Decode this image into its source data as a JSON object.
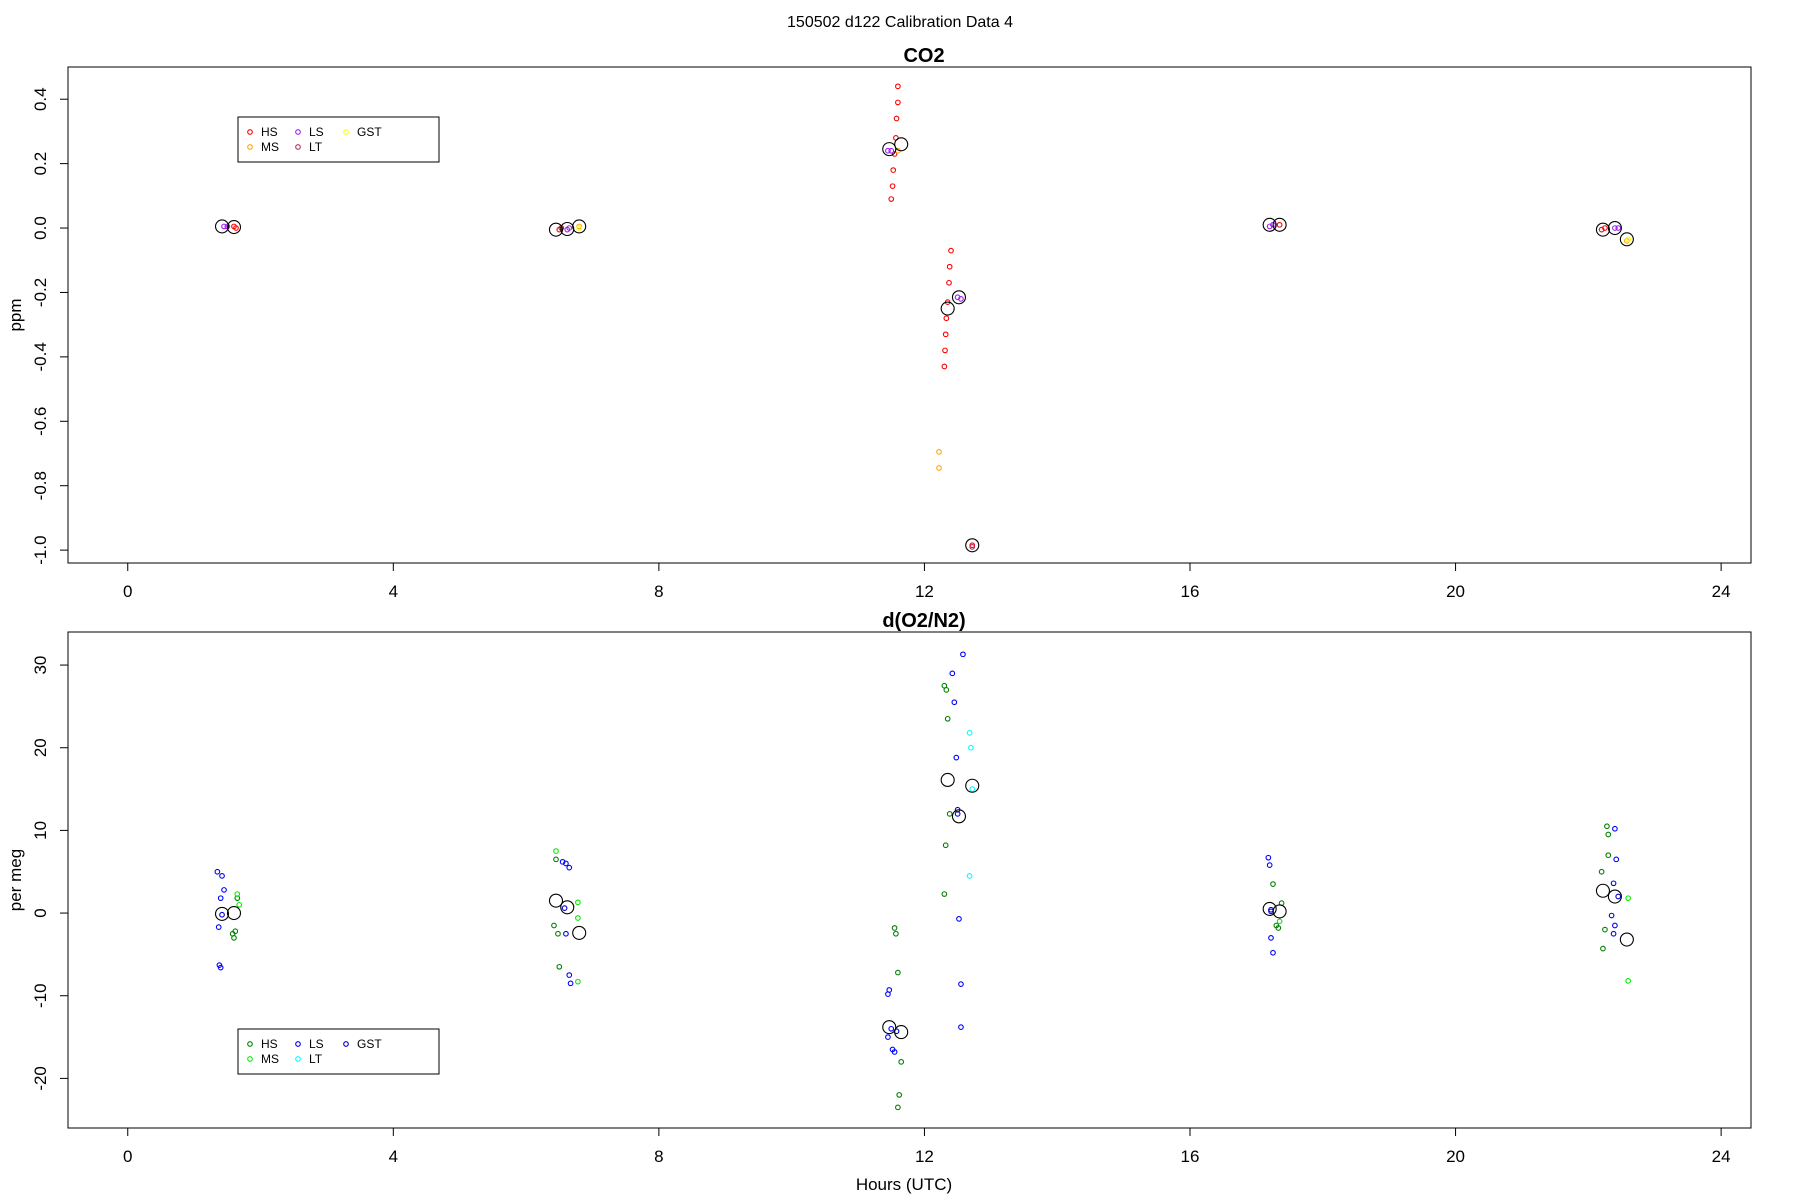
{
  "figure": {
    "suptitle": "150502   d122   Calibration Data 4"
  },
  "colors": {
    "co2": {
      "HS": "#ff0000",
      "MS": "#ffa500",
      "LS": "#a020f0",
      "LT": "#b03060",
      "GST": "#ffff00"
    },
    "o2": {
      "HS": "#008000",
      "MS": "#00ee00",
      "LS": "#0000ff",
      "LT": "#00ffff",
      "GST": "#0000cd"
    }
  },
  "chart_data": [
    {
      "type": "scatter",
      "title": "CO2",
      "xlabel": "",
      "ylabel": "ppm",
      "xlim": [
        -0.9,
        24.45
      ],
      "ylim": [
        -1.04,
        0.5
      ],
      "xticks": [
        "0",
        "4",
        "8",
        "12",
        "16",
        "20",
        "24"
      ],
      "yticks": [
        "0.4",
        "0.2",
        "0.0",
        "-0.2",
        "-0.4",
        "-0.6",
        "-0.8",
        "-1.0"
      ],
      "legend": {
        "position": "top-left",
        "entries": [
          "HS",
          "MS",
          "LS",
          "LT",
          "GST"
        ]
      },
      "series": [
        {
          "name": "HS",
          "points": [
            [
              1.6,
              0.005
            ],
            [
              1.63,
              0.0
            ],
            [
              6.5,
              -0.005
            ],
            [
              6.53,
              0.0
            ],
            [
              11.6,
              0.44
            ],
            [
              11.6,
              0.39
            ],
            [
              11.58,
              0.34
            ],
            [
              11.57,
              0.28
            ],
            [
              11.55,
              0.23
            ],
            [
              11.53,
              0.18
            ],
            [
              11.52,
              0.13
            ],
            [
              11.5,
              0.09
            ],
            [
              12.4,
              -0.07
            ],
            [
              12.38,
              -0.12
            ],
            [
              12.37,
              -0.17
            ],
            [
              12.35,
              -0.23
            ],
            [
              12.33,
              -0.28
            ],
            [
              12.32,
              -0.33
            ],
            [
              12.31,
              -0.38
            ],
            [
              12.3,
              -0.43
            ],
            [
              17.35,
              0.01
            ],
            [
              22.2,
              -0.005
            ],
            [
              22.25,
              0.0
            ],
            [
              12.72,
              -0.985
            ]
          ]
        },
        {
          "name": "MS",
          "points": [
            [
              6.8,
              0.005
            ],
            [
              11.6,
              0.24
            ],
            [
              12.22,
              -0.695
            ],
            [
              12.22,
              -0.745
            ],
            [
              22.58,
              -0.04
            ]
          ]
        },
        {
          "name": "LS",
          "points": [
            [
              1.45,
              0.005
            ],
            [
              1.5,
              0.005
            ],
            [
              6.62,
              -0.005
            ],
            [
              6.65,
              0.0
            ],
            [
              11.45,
              0.24
            ],
            [
              11.5,
              0.24
            ],
            [
              12.5,
              -0.215
            ],
            [
              12.55,
              -0.22
            ],
            [
              17.2,
              0.005
            ],
            [
              17.25,
              0.01
            ],
            [
              22.4,
              0.0
            ],
            [
              22.45,
              0.0
            ]
          ]
        },
        {
          "name": "LT",
          "points": [
            [
              12.72,
              -0.99
            ]
          ]
        },
        {
          "name": "GST",
          "points": [
            [
              6.8,
              0.0
            ],
            [
              22.6,
              -0.035
            ]
          ]
        }
      ],
      "means": [
        [
          1.42,
          0.005
        ],
        [
          1.6,
          0.003
        ],
        [
          6.45,
          -0.005
        ],
        [
          6.62,
          -0.003
        ],
        [
          6.8,
          0.005
        ],
        [
          11.47,
          0.245
        ],
        [
          11.65,
          0.26
        ],
        [
          12.35,
          -0.25
        ],
        [
          12.52,
          -0.215
        ],
        [
          12.72,
          -0.985
        ],
        [
          17.2,
          0.01
        ],
        [
          17.35,
          0.01
        ],
        [
          22.22,
          -0.005
        ],
        [
          22.4,
          0.0
        ],
        [
          22.58,
          -0.035
        ]
      ]
    },
    {
      "type": "scatter",
      "title": "d(O2/N2)",
      "xlabel": "Hours (UTC)",
      "ylabel": "per meg",
      "xlim": [
        -0.9,
        24.45
      ],
      "ylim": [
        -26,
        34
      ],
      "xticks": [
        "0",
        "4",
        "8",
        "12",
        "16",
        "20",
        "24"
      ],
      "yticks": [
        "30",
        "20",
        "10",
        "0",
        "-10",
        "-20"
      ],
      "legend": {
        "position": "bottom-left",
        "entries": [
          "HS",
          "MS",
          "LS",
          "LT",
          "GST"
        ]
      },
      "series": [
        {
          "name": "HS",
          "points": [
            [
              1.58,
              -2.5
            ],
            [
              1.6,
              -3.0
            ],
            [
              1.62,
              -2.2
            ],
            [
              1.65,
              1.8
            ],
            [
              6.45,
              6.5
            ],
            [
              6.48,
              -2.5
            ],
            [
              6.5,
              -6.5
            ],
            [
              6.42,
              -1.5
            ],
            [
              11.55,
              -1.8
            ],
            [
              11.57,
              -2.5
            ],
            [
              11.6,
              -7.2
            ],
            [
              11.65,
              -18.0
            ],
            [
              11.62,
              -22.0
            ],
            [
              11.6,
              -23.5
            ],
            [
              12.3,
              27.5
            ],
            [
              12.33,
              27.0
            ],
            [
              12.35,
              23.5
            ],
            [
              12.32,
              8.2
            ],
            [
              12.3,
              2.3
            ],
            [
              12.38,
              12.0
            ],
            [
              17.25,
              3.5
            ],
            [
              17.3,
              -1.5
            ],
            [
              17.33,
              -1.8
            ],
            [
              17.38,
              1.2
            ],
            [
              22.2,
              5.0
            ],
            [
              22.22,
              -4.3
            ],
            [
              22.25,
              -2.0
            ],
            [
              22.3,
              7.0
            ],
            [
              22.28,
              10.5
            ],
            [
              22.3,
              9.5
            ]
          ]
        },
        {
          "name": "MS",
          "points": [
            [
              1.65,
              2.3
            ],
            [
              1.68,
              1.0
            ],
            [
              6.45,
              7.5
            ],
            [
              6.78,
              1.3
            ],
            [
              6.78,
              -0.6
            ],
            [
              6.78,
              -8.3
            ],
            [
              17.35,
              -1.0
            ],
            [
              22.6,
              1.8
            ],
            [
              22.6,
              -8.2
            ]
          ]
        },
        {
          "name": "LS",
          "points": [
            [
              1.35,
              5.0
            ],
            [
              1.42,
              4.5
            ],
            [
              1.45,
              2.8
            ],
            [
              1.4,
              1.8
            ],
            [
              1.37,
              -1.7
            ],
            [
              1.38,
              -6.3
            ],
            [
              1.4,
              -6.6
            ],
            [
              6.55,
              6.2
            ],
            [
              6.6,
              6.0
            ],
            [
              6.65,
              5.5
            ],
            [
              6.6,
              -2.5
            ],
            [
              6.65,
              -7.5
            ],
            [
              6.67,
              -8.5
            ],
            [
              11.45,
              -9.8
            ],
            [
              11.47,
              -9.3
            ],
            [
              11.5,
              -14.0
            ],
            [
              11.52,
              -16.5
            ],
            [
              11.55,
              -16.8
            ],
            [
              11.45,
              -15.0
            ],
            [
              12.42,
              29.0
            ],
            [
              12.45,
              25.5
            ],
            [
              12.48,
              18.8
            ],
            [
              12.5,
              12.0
            ],
            [
              12.52,
              -0.7
            ],
            [
              12.55,
              -8.6
            ],
            [
              12.55,
              -13.8
            ],
            [
              12.58,
              31.3
            ],
            [
              17.18,
              6.7
            ],
            [
              17.2,
              5.8
            ],
            [
              17.22,
              -3.0
            ],
            [
              17.25,
              -4.8
            ],
            [
              17.22,
              0.2
            ],
            [
              22.4,
              10.2
            ],
            [
              22.42,
              6.5
            ],
            [
              22.38,
              3.6
            ],
            [
              22.35,
              -0.3
            ],
            [
              22.4,
              -1.5
            ],
            [
              22.38,
              -2.5
            ]
          ]
        },
        {
          "name": "LT",
          "points": [
            [
              12.68,
              21.8
            ],
            [
              12.7,
              20.0
            ],
            [
              12.72,
              15.0
            ],
            [
              12.68,
              4.5
            ]
          ]
        },
        {
          "name": "GST",
          "points": [
            [
              1.42,
              -0.2
            ],
            [
              6.58,
              0.6
            ],
            [
              11.58,
              -14.3
            ],
            [
              12.5,
              12.5
            ],
            [
              17.22,
              0.4
            ],
            [
              22.45,
              2.0
            ]
          ]
        }
      ],
      "means": [
        [
          1.42,
          -0.1
        ],
        [
          1.6,
          0.0
        ],
        [
          6.45,
          1.5
        ],
        [
          6.62,
          0.7
        ],
        [
          6.8,
          -2.4
        ],
        [
          11.47,
          -13.8
        ],
        [
          11.65,
          -14.4
        ],
        [
          12.35,
          16.1
        ],
        [
          12.52,
          11.7
        ],
        [
          12.72,
          15.4
        ],
        [
          17.2,
          0.5
        ],
        [
          17.35,
          0.2
        ],
        [
          22.22,
          2.7
        ],
        [
          22.4,
          2.0
        ],
        [
          22.58,
          -3.2
        ]
      ]
    }
  ]
}
